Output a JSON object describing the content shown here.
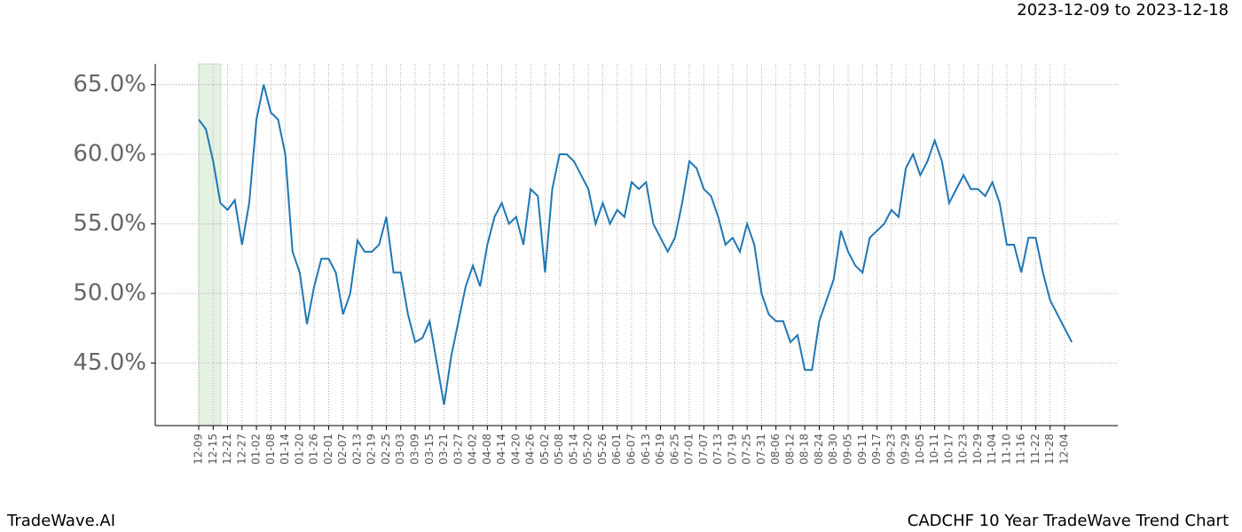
{
  "chart_data": {
    "type": "line",
    "title": "2023-12-09 to 2023-12-18",
    "footer_left": "TradeWave.AI",
    "footer_right": "CADCHF 10 Year TradeWave Trend Chart",
    "categories": [
      "12-09",
      null,
      "12-15",
      null,
      "12-21",
      null,
      "12-27",
      null,
      "01-02",
      null,
      "01-08",
      null,
      "01-14",
      null,
      "01-20",
      null,
      "01-26",
      null,
      "02-01",
      null,
      "02-07",
      null,
      "02-13",
      null,
      "02-19",
      null,
      "02-25",
      null,
      "03-03",
      null,
      "03-09",
      null,
      "03-15",
      null,
      "03-21",
      null,
      "03-27",
      null,
      "04-02",
      null,
      "04-08",
      null,
      "04-14",
      null,
      "04-20",
      null,
      "04-26",
      null,
      "05-02",
      null,
      "05-08",
      null,
      "05-14",
      null,
      "05-20",
      null,
      "05-26",
      null,
      "06-01",
      null,
      "06-07",
      null,
      "06-13",
      null,
      "06-19",
      null,
      "06-25",
      null,
      "07-01",
      null,
      "07-07",
      null,
      "07-13",
      null,
      "07-19",
      null,
      "07-25",
      null,
      "07-31",
      null,
      "08-06",
      null,
      "08-12",
      null,
      "08-18",
      null,
      "08-24",
      null,
      "08-30",
      null,
      "09-05",
      null,
      "09-11",
      null,
      "09-17",
      null,
      "09-23",
      null,
      "09-29",
      null,
      "10-05",
      null,
      "10-11",
      null,
      "10-17",
      null,
      "10-23",
      null,
      "10-29",
      null,
      "11-04",
      null,
      "11-10",
      null,
      "11-16",
      null,
      "11-22",
      null,
      "11-28",
      null,
      "12-04",
      null
    ],
    "series": [
      {
        "color": "#1f77b4",
        "values": [
          62.5,
          61.8,
          59.5,
          56.5,
          56.0,
          56.7,
          53.5,
          56.5,
          62.5,
          65.0,
          63.0,
          62.5,
          60.0,
          53.0,
          51.5,
          47.8,
          50.5,
          52.5,
          52.5,
          51.5,
          48.5,
          50.0,
          53.8,
          53.0,
          53.0,
          53.5,
          55.5,
          51.5,
          51.5,
          48.5,
          46.5,
          46.8,
          48.0,
          45.0,
          42.0,
          45.5,
          48.0,
          50.5,
          52.0,
          50.5,
          53.5,
          55.5,
          56.5,
          55.0,
          55.5,
          53.5,
          57.5,
          57.0,
          51.5,
          57.5,
          60.0,
          60.0,
          59.5,
          58.5,
          57.5,
          55.0,
          56.5,
          55.0,
          56.0,
          55.5,
          58.0,
          57.5,
          58.0,
          55.0,
          54.0,
          53.0,
          54.0,
          56.5,
          59.5,
          59.0,
          57.5,
          57.0,
          55.5,
          53.5,
          54.0,
          53.0,
          55.0,
          53.5,
          50.0,
          48.5,
          48.0,
          48.0,
          46.5,
          47.0,
          44.5,
          44.5,
          48.0,
          49.5,
          51.0,
          54.5,
          53.0,
          52.0,
          51.5,
          54.0,
          54.5,
          55.0,
          56.0,
          55.5,
          59.0,
          60.0,
          58.5,
          59.5,
          61.0,
          59.5,
          56.5,
          57.5,
          58.5,
          57.5,
          57.5,
          57.0,
          58.0,
          56.5,
          53.5,
          53.5,
          51.5,
          54.0,
          54.0,
          51.5,
          49.5,
          48.5,
          47.5,
          46.5
        ]
      }
    ],
    "ylim": [
      40.5,
      66.5
    ],
    "yticks": [
      {
        "value": 45,
        "label": "45.0%"
      },
      {
        "value": 50,
        "label": "50.0%"
      },
      {
        "value": 55,
        "label": "55.0%"
      },
      {
        "value": 60,
        "label": "60.0%"
      },
      {
        "value": 65,
        "label": "65.0%"
      }
    ],
    "grid": true
  }
}
